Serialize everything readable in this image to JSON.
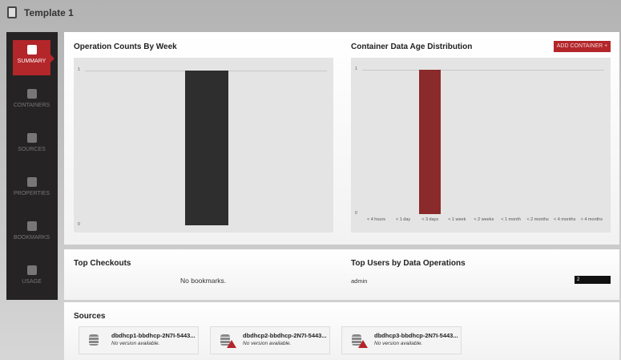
{
  "header": {
    "title": "Template 1"
  },
  "sidebar": {
    "items": [
      {
        "label": "SUMMARY",
        "icon": "document-icon",
        "active": true
      },
      {
        "label": "CONTAINERS",
        "icon": "container-icon"
      },
      {
        "label": "SOURCES",
        "icon": "database-icon"
      },
      {
        "label": "PROPERTIES",
        "icon": "layers-icon"
      },
      {
        "label": "BOOKMARKS",
        "icon": "bookmark-icon"
      },
      {
        "label": "USAGE",
        "icon": "usage-icon"
      }
    ]
  },
  "add_container_label": "ADD CONTAINER +",
  "chart_data": [
    {
      "type": "bar",
      "title": "Operation Counts By Week",
      "categories": [
        ""
      ],
      "values": [
        1
      ],
      "ylim": [
        0,
        1
      ],
      "yticks": [
        "0",
        "1"
      ],
      "color": "#2e2e2e"
    },
    {
      "type": "bar",
      "title": "Container Data Age Distribution",
      "categories": [
        "< 4 hours",
        "< 1 day",
        "< 3 days",
        "< 1 week",
        "< 2 weeks",
        "< 1 month",
        "< 2 months",
        "< 4 months",
        "> 4 months"
      ],
      "values": [
        0,
        0,
        1,
        0,
        0,
        0,
        0,
        0,
        0
      ],
      "ylim": [
        0,
        1
      ],
      "yticks": [
        "0",
        "1"
      ],
      "color": "#8b2a2a"
    }
  ],
  "top_checkouts": {
    "title": "Top Checkouts",
    "empty": "No bookmarks."
  },
  "top_users": {
    "title": "Top Users by Data Operations",
    "rows": [
      {
        "user": "admin",
        "count": "2"
      }
    ]
  },
  "sources": {
    "title": "Sources",
    "items": [
      {
        "name": "dbdhcp1-bbdhcp-2N7I-5443...",
        "version": "No version available.",
        "warning": false
      },
      {
        "name": "dbdhcp2-bbdhcp-2N7I-5443...",
        "version": "No version available.",
        "warning": true
      },
      {
        "name": "dbdhcp3-bbdhcp-2N7I-5443...",
        "version": "No version available.",
        "warning": true
      }
    ]
  }
}
